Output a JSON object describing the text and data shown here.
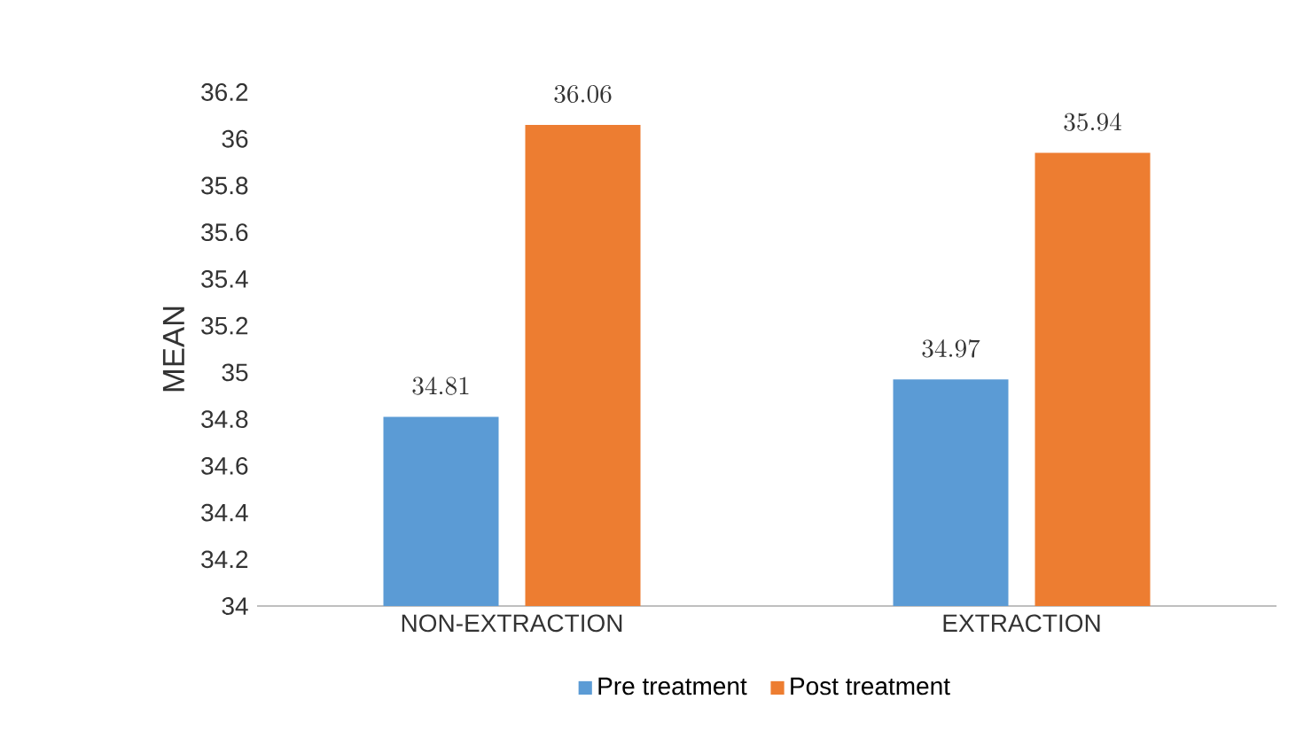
{
  "chart_data": {
    "type": "bar",
    "ylabel": "MEAN",
    "categories": [
      "NON-EXTRACTION",
      "EXTRACTION"
    ],
    "series": [
      {
        "name": "Pre treatment",
        "color": "#5b9bd5",
        "values": [
          34.81,
          34.97
        ]
      },
      {
        "name": "Post treatment",
        "color": "#ed7d31",
        "values": [
          36.06,
          35.94
        ]
      }
    ],
    "ylim": [
      34,
      36.2
    ],
    "yticks": [
      34,
      34.2,
      34.4,
      34.6,
      34.8,
      35,
      35.2,
      35.4,
      35.6,
      35.8,
      36,
      36.2
    ],
    "data_labels": true,
    "legend": "bottom"
  }
}
